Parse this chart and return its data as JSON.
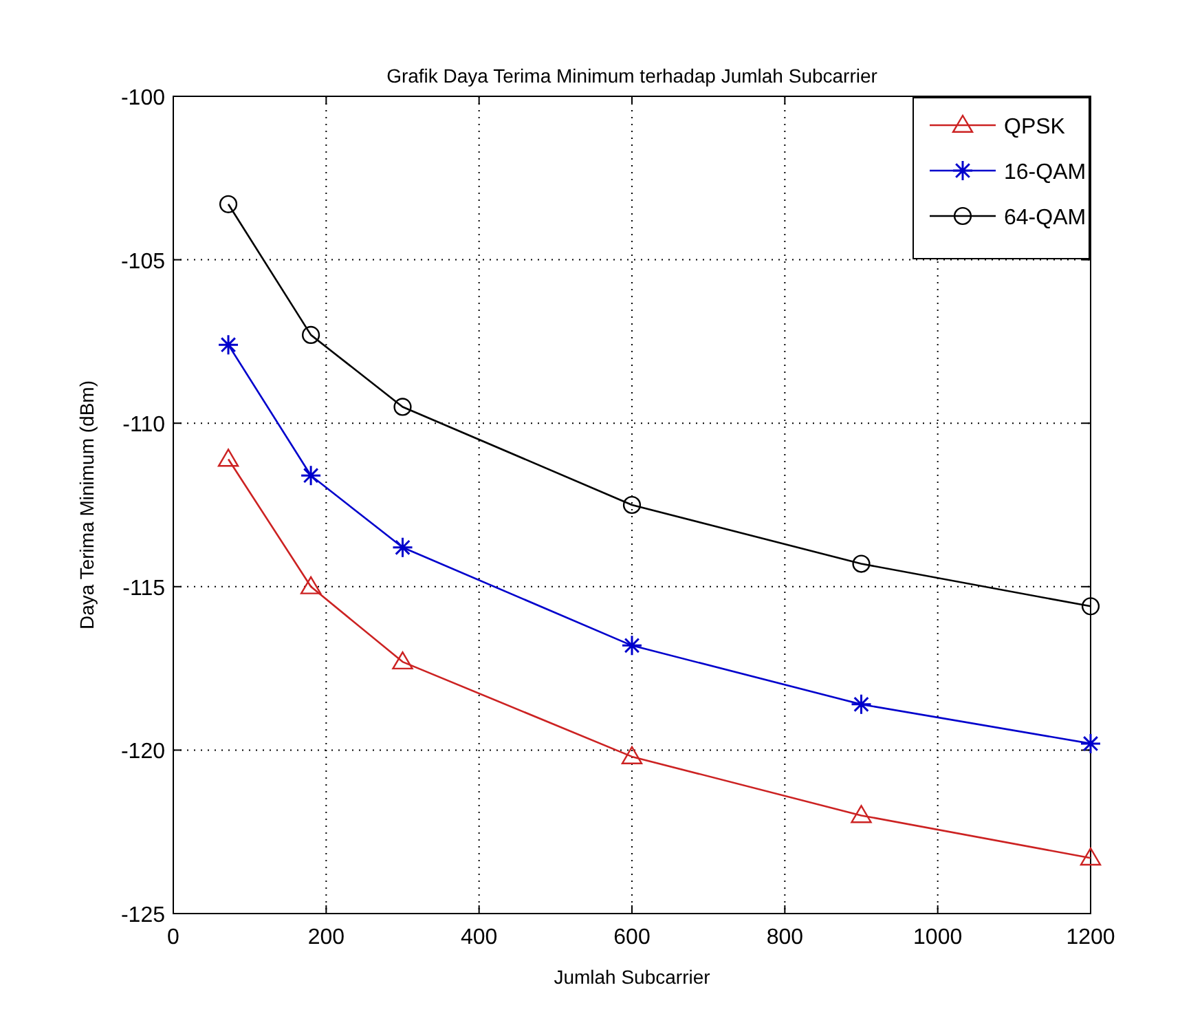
{
  "chart_data": {
    "type": "line",
    "title": "Grafik Daya Terima Minimum terhadap Jumlah Subcarrier",
    "xlabel": "Jumlah Subcarrier",
    "ylabel": "Daya Terima Minimum (dBm)",
    "x": [
      72,
      180,
      300,
      600,
      900,
      1200
    ],
    "series": [
      {
        "name": "QPSK",
        "color": "#cc2222",
        "marker": "triangle",
        "values": [
          -111.1,
          -115.0,
          -117.3,
          -120.2,
          -122.0,
          -123.3
        ]
      },
      {
        "name": "16-QAM",
        "color": "#0000cc",
        "marker": "cross",
        "values": [
          -107.6,
          -111.6,
          -113.8,
          -116.8,
          -118.6,
          -119.8
        ]
      },
      {
        "name": "64-QAM",
        "color": "#000000",
        "marker": "circle",
        "values": [
          -103.3,
          -107.3,
          -109.5,
          -112.5,
          -114.3,
          -115.6
        ]
      }
    ],
    "xlim": [
      0,
      1200
    ],
    "xticks": [
      0,
      200,
      400,
      600,
      800,
      1000,
      1200
    ],
    "ylim": [
      -125,
      -100
    ],
    "yticks": [
      -125,
      -120,
      -115,
      -110,
      -105,
      -100
    ],
    "grid": true,
    "legend": "top right",
    "line_style": "solid"
  }
}
